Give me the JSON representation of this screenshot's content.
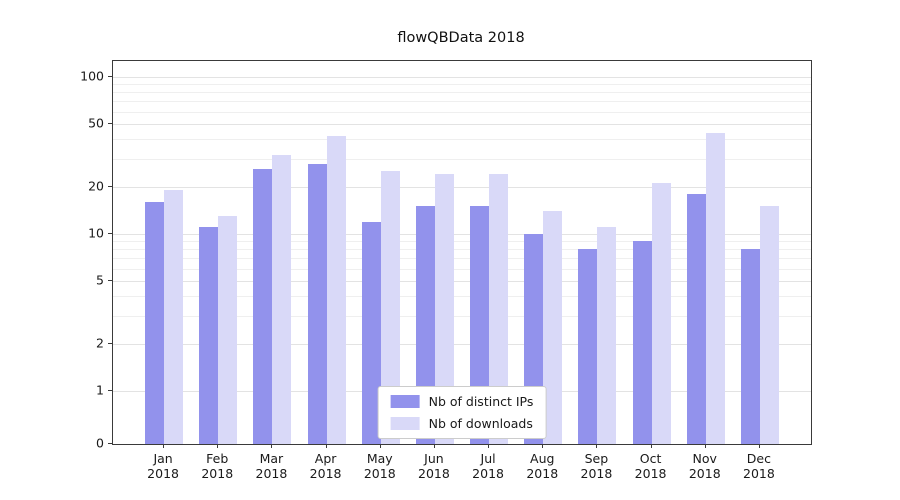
{
  "page": {
    "title": "flowQBData 2018"
  },
  "chart_data": {
    "type": "bar",
    "title": "flowQBData 2018",
    "categories": [
      "Jan",
      "Feb",
      "Mar",
      "Apr",
      "May",
      "Jun",
      "Jul",
      "Aug",
      "Sep",
      "Oct",
      "Nov",
      "Dec"
    ],
    "category_year": "2018",
    "series": [
      {
        "name": "Nb of distinct IPs",
        "color": "#9292ec",
        "values": [
          16,
          11,
          26,
          28,
          12,
          15,
          15,
          10,
          8,
          9,
          18,
          8
        ]
      },
      {
        "name": "Nb of downloads",
        "color": "#d9d9f8",
        "values": [
          19,
          13,
          32,
          42,
          25,
          24,
          24,
          14,
          11,
          21,
          44,
          15
        ]
      }
    ],
    "yscale": "symlog",
    "y_ticks": [
      0,
      1,
      2,
      5,
      10,
      20,
      50,
      100
    ],
    "y_minor_gridlines": [
      3,
      4,
      6,
      7,
      8,
      9,
      30,
      40,
      60,
      70,
      80,
      90
    ],
    "ylim": [
      0,
      120
    ],
    "grid": "horizontal",
    "legend_position": "lower center",
    "colors": {
      "major_grid": "#e3e3e3",
      "minor_grid": "#efefef",
      "spine": "#3a3a3a"
    }
  }
}
